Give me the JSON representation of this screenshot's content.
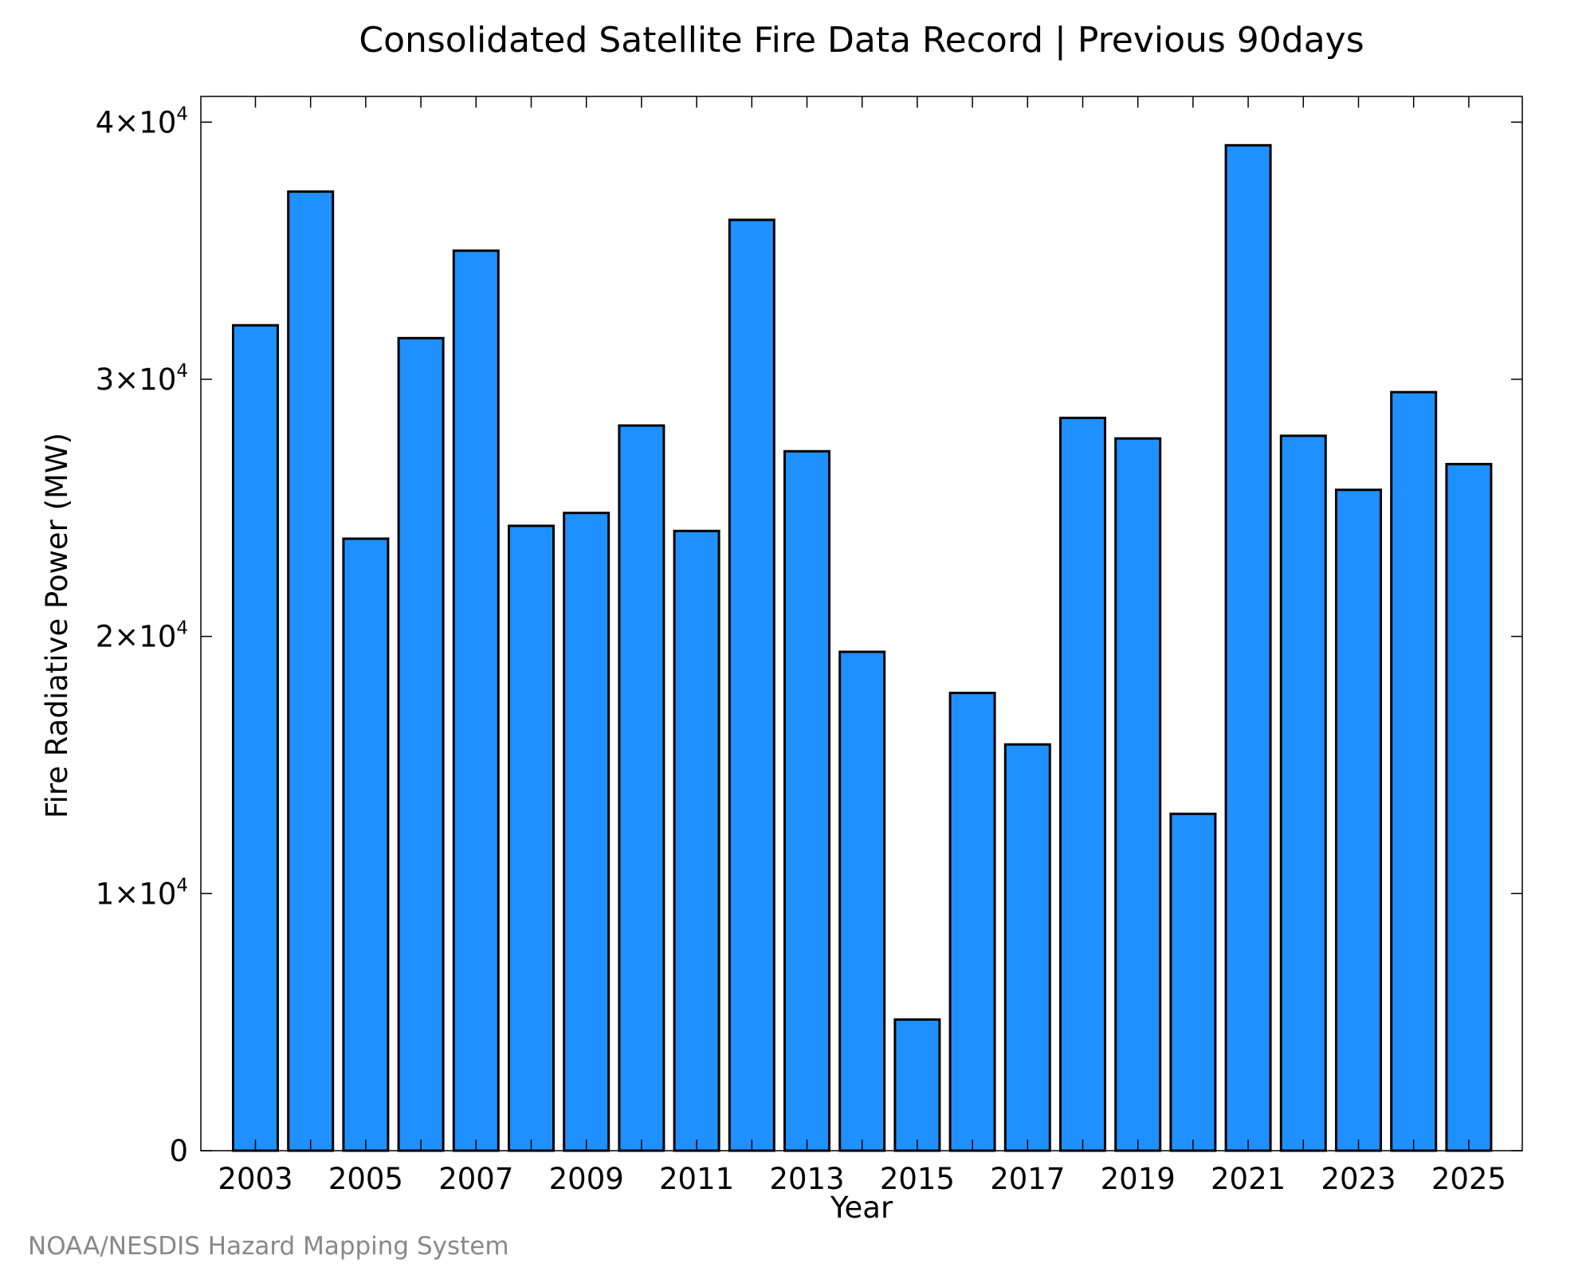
{
  "colors": {
    "bar_fill": "#1e90ff",
    "bar_stroke": "#000000",
    "credit_text": "#888888"
  },
  "chart_data": {
    "type": "bar",
    "title": "Consolidated Satellite Fire Data Record | Previous 90days",
    "xlabel": "Year",
    "ylabel": "Fire Radiative Power (MW)",
    "ylim": [
      0,
      41000
    ],
    "grid": false,
    "legend": "none",
    "categories": [
      "2003",
      "2004",
      "2005",
      "2006",
      "2007",
      "2008",
      "2009",
      "2010",
      "2011",
      "2012",
      "2013",
      "2014",
      "2015",
      "2016",
      "2017",
      "2018",
      "2019",
      "2020",
      "2021",
      "2022",
      "2023",
      "2024",
      "2025"
    ],
    "values": [
      32100,
      37300,
      23800,
      31600,
      35000,
      24300,
      24800,
      28200,
      24100,
      36200,
      27200,
      19400,
      5100,
      17800,
      15800,
      28500,
      27700,
      13100,
      39100,
      27800,
      25700,
      29500,
      26700
    ],
    "x_tick_labels": [
      "2003",
      "2005",
      "2007",
      "2009",
      "2011",
      "2013",
      "2015",
      "2017",
      "2019",
      "2021",
      "2023",
      "2025"
    ],
    "y_ticks": [
      {
        "value": 0,
        "mantissa": "0",
        "exponent": ""
      },
      {
        "value": 10000,
        "mantissa": "1×10",
        "exponent": "4"
      },
      {
        "value": 20000,
        "mantissa": "2×10",
        "exponent": "4"
      },
      {
        "value": 30000,
        "mantissa": "3×10",
        "exponent": "4"
      },
      {
        "value": 40000,
        "mantissa": "4×10",
        "exponent": "4"
      }
    ],
    "credit": "NOAA/NESDIS Hazard Mapping System"
  }
}
